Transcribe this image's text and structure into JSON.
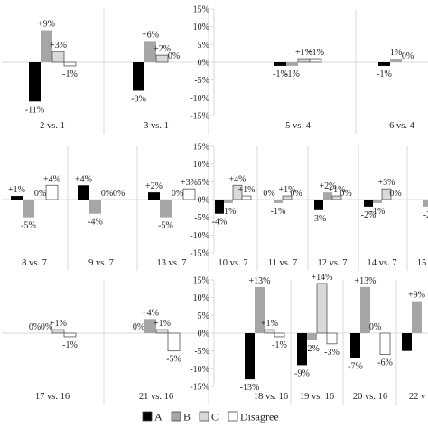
{
  "legend": [
    "A",
    "B",
    "C",
    "Disagree"
  ],
  "colors": {
    "A": "#000000",
    "B": "#a6a6a6",
    "C": "#d9d9d9",
    "Disagree": "#ffffff",
    "axis": "#d9d9d9",
    "text": "#222222"
  },
  "chart_data": [
    {
      "type": "bar",
      "ylim": [
        -15,
        15
      ],
      "yticks": [
        "15%",
        "10%",
        "5%",
        "0%",
        "-5%",
        "-10%",
        "-15%"
      ],
      "y_axis_shown": false,
      "series_order": [
        "A",
        "B",
        "C",
        "Disagree"
      ],
      "groups": [
        {
          "label": "2 vs. 1",
          "values": [
            -11,
            9,
            3,
            -1
          ],
          "labels": [
            "-11%",
            "+9%",
            "+3%",
            "-1%"
          ]
        },
        {
          "label": "3 vs. 1",
          "values": [
            -8,
            6,
            2,
            0
          ],
          "labels": [
            "-8%",
            "+6%",
            "+2%",
            "0%"
          ]
        }
      ]
    },
    {
      "type": "bar",
      "ylim": [
        -15,
        15
      ],
      "yticks": [
        "15%",
        "10%",
        "5%",
        "0%",
        "-5%",
        "-10%",
        "-15%"
      ],
      "y_axis_shown": true,
      "series_order": [
        "A",
        "B",
        "C",
        "Disagree"
      ],
      "groups": [
        {
          "label": "5 vs. 4",
          "values": [
            -1,
            -1,
            1,
            1
          ],
          "labels": [
            "-1%",
            "-1%",
            "+1%",
            "+1%"
          ]
        },
        {
          "label": "6 vs. 4",
          "values": [
            -1,
            1,
            0,
            0
          ],
          "labels": [
            "-1%",
            "1%",
            "0%",
            ""
          ]
        }
      ]
    },
    {
      "type": "bar",
      "ylim": [
        -15,
        15
      ],
      "yticks": [
        "15%",
        "10%",
        "5%",
        "0%",
        "-5%",
        "-10%",
        "-15%"
      ],
      "y_axis_shown": false,
      "series_order": [
        "A",
        "B",
        "C",
        "Disagree"
      ],
      "groups": [
        {
          "label": "8 vs. 7",
          "values": [
            1,
            -5,
            0,
            4
          ],
          "labels": [
            "+1%",
            "-5%",
            "0%",
            "+4%"
          ]
        },
        {
          "label": "9 vs. 7",
          "values": [
            4,
            -4,
            0,
            0
          ],
          "labels": [
            "+4%",
            "-4%",
            "0%",
            "0%"
          ]
        },
        {
          "label": "13 vs. 7",
          "values": [
            2,
            -5,
            0,
            3
          ],
          "labels": [
            "+2%",
            "-5%",
            "0%",
            "+3%"
          ]
        }
      ]
    },
    {
      "type": "bar",
      "ylim": [
        -15,
        15
      ],
      "yticks": [
        "15%",
        "10%",
        "5%",
        "0%",
        "-5%",
        "-10%",
        "-15%"
      ],
      "y_axis_shown": true,
      "series_order": [
        "A",
        "B",
        "C",
        "Disagree"
      ],
      "groups": [
        {
          "label": "10 vs. 7",
          "values": [
            -4,
            -1,
            4,
            1
          ],
          "labels": [
            "-4%",
            "-1%",
            "+4%",
            "+1%"
          ]
        },
        {
          "label": "11 vs. 7",
          "values": [
            0,
            -1,
            1,
            0
          ],
          "labels": [
            "0%",
            "-1%",
            "+1%",
            "0%"
          ]
        },
        {
          "label": "12 vs. 7",
          "values": [
            -3,
            2,
            1,
            0
          ],
          "labels": [
            "-3%",
            "+2%",
            "+1%",
            "0%"
          ]
        },
        {
          "label": "14 vs. 7",
          "values": [
            -2,
            -1,
            3,
            0
          ],
          "labels": [
            "-2%",
            "-1%",
            "+3%",
            "0%"
          ]
        },
        {
          "label": "15",
          "values": [
            0,
            -2,
            0,
            0
          ],
          "labels": [
            "",
            "-2",
            "",
            ""
          ]
        }
      ]
    },
    {
      "type": "bar",
      "ylim": [
        -15,
        15
      ],
      "yticks": [
        "15%",
        "10%",
        "5%",
        "0%",
        "-5%",
        "-10%",
        "-15%"
      ],
      "y_axis_shown": false,
      "series_order": [
        "A",
        "B",
        "C",
        "Disagree"
      ],
      "groups": [
        {
          "label": "17 vs. 16",
          "values": [
            0,
            0,
            1,
            -1
          ],
          "labels": [
            "0%",
            "0%",
            "+1%",
            "-1%"
          ]
        },
        {
          "label": "21 vs. 16",
          "values": [
            0,
            4,
            1,
            -5
          ],
          "labels": [
            "0%",
            "+4%",
            "+1%",
            "-5%"
          ]
        }
      ]
    },
    {
      "type": "bar",
      "ylim": [
        -15,
        15
      ],
      "yticks": [
        "15%",
        "10%",
        "5%",
        "0%",
        "-5%",
        "-10%",
        "-15%"
      ],
      "y_axis_shown": true,
      "series_order": [
        "A",
        "B",
        "C",
        "Disagree"
      ],
      "groups": [
        {
          "label": "18 vs. 16",
          "values": [
            -13,
            13,
            1,
            -1
          ],
          "labels": [
            "-13%",
            "+13%",
            "+1%",
            "-1%"
          ]
        },
        {
          "label": "19 vs. 16",
          "values": [
            -9,
            -2,
            14,
            -3
          ],
          "labels": [
            "-9%",
            "-2%",
            "+14%",
            "-3%"
          ]
        },
        {
          "label": "20 vs. 16",
          "values": [
            -7,
            13,
            0,
            -6
          ],
          "labels": [
            "-7%",
            "+13%",
            "0%",
            "-6%"
          ]
        },
        {
          "label": "22 v",
          "values": [
            -5,
            9,
            0,
            0
          ],
          "labels": [
            "",
            "+9%",
            "",
            ""
          ]
        }
      ]
    }
  ]
}
